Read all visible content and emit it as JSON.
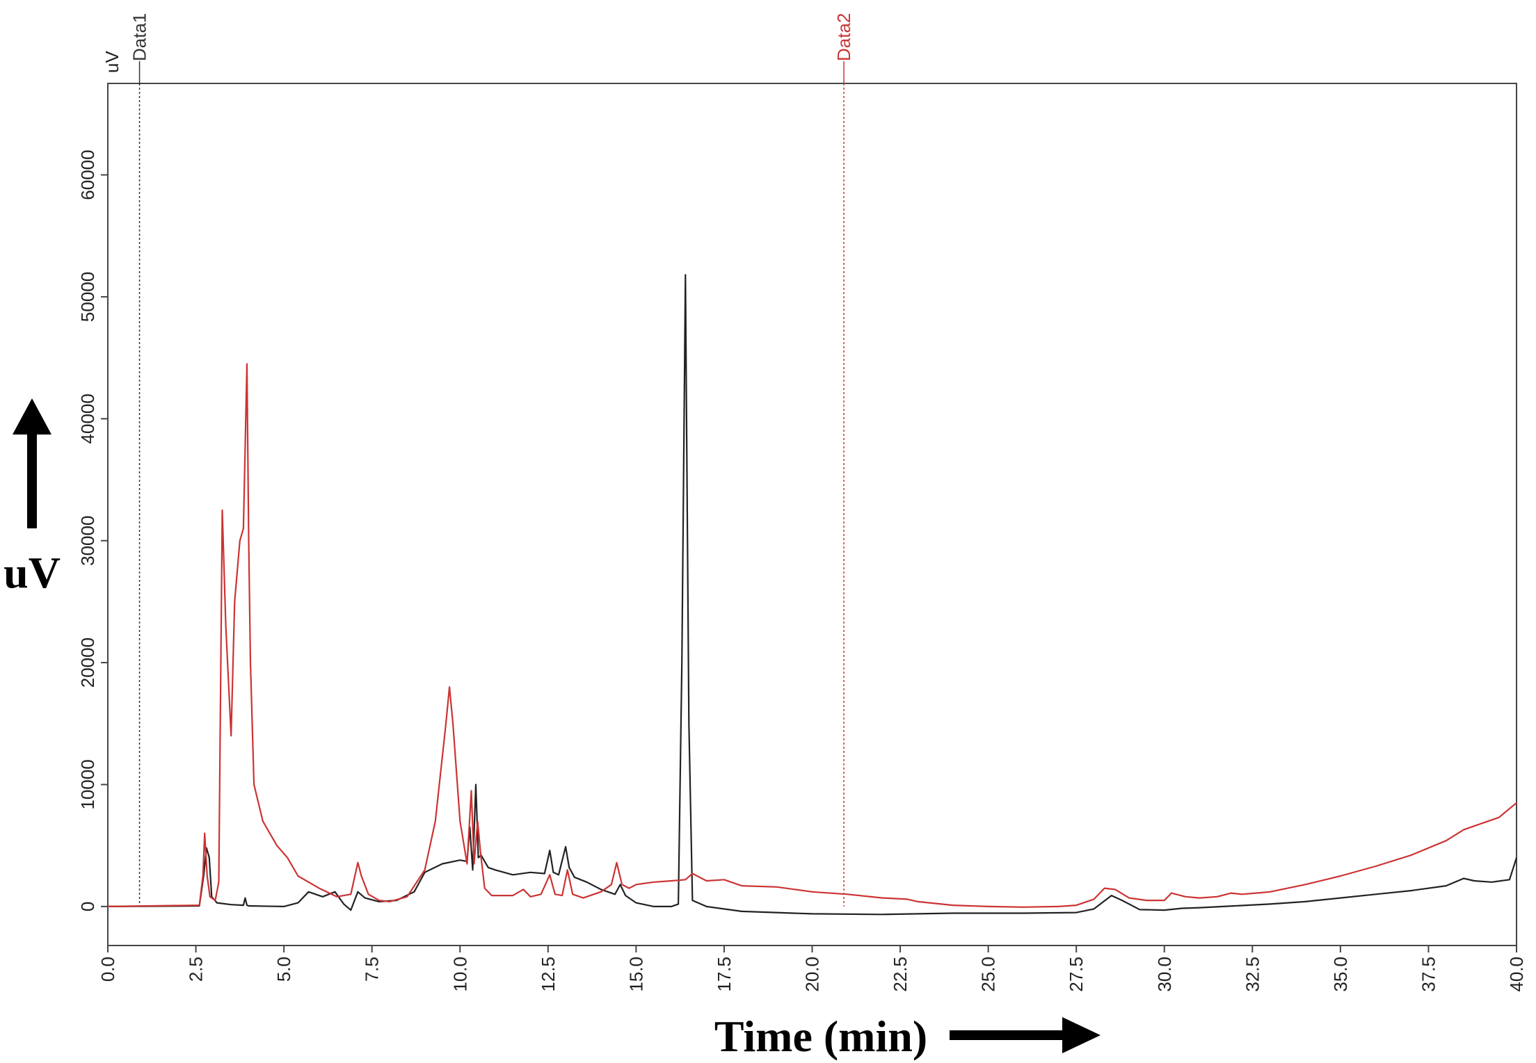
{
  "chart_data": {
    "type": "line",
    "xlabel": "Time (min)",
    "ylabel": "uV",
    "unit_top": "uV",
    "xlim": [
      0,
      40
    ],
    "ylim": [
      -3200,
      67500
    ],
    "x_ticks": [
      "0.0",
      "2.5",
      "5.0",
      "7.5",
      "10.0",
      "12.5",
      "15.0",
      "17.5",
      "20.0",
      "22.5",
      "25.0",
      "27.5",
      "30.0",
      "32.5",
      "35.0",
      "37.5",
      "40.0"
    ],
    "y_ticks": [
      "0",
      "10000",
      "20000",
      "30000",
      "40000",
      "50000",
      "60000"
    ],
    "markers": [
      {
        "label": "Data1",
        "x": 0.9,
        "color": "#333333"
      },
      {
        "label": "Data2",
        "x": 20.9,
        "color": "#cc3333"
      }
    ],
    "series": [
      {
        "color": "#222222",
        "x": [
          0,
          2.6,
          2.72,
          2.8,
          2.88,
          2.95,
          3.1,
          3.5,
          3.85,
          3.9,
          3.95,
          4.0,
          5.0,
          5.4,
          5.7,
          6.1,
          6.45,
          6.7,
          6.9,
          7.1,
          7.3,
          7.7,
          8.2,
          8.7,
          9.0,
          9.5,
          10.0,
          10.2,
          10.28,
          10.36,
          10.45,
          10.52,
          10.6,
          10.8,
          11.0,
          11.5,
          12.0,
          12.4,
          12.55,
          12.65,
          12.8,
          13.0,
          13.1,
          13.25,
          13.6,
          14.0,
          14.4,
          14.55,
          14.7,
          15.0,
          15.5,
          16.0,
          16.2,
          16.3,
          16.4,
          16.5,
          16.6,
          17.0,
          18.0,
          20.0,
          22.0,
          24.0,
          26.0,
          27.5,
          28.0,
          28.5,
          28.8,
          29.3,
          30.0,
          30.5,
          31.0,
          32.0,
          33.0,
          34.0,
          35.0,
          36.0,
          37.0,
          38.0,
          38.5,
          38.8,
          39.3,
          39.8,
          40.0
        ],
        "y": [
          0,
          50,
          2500,
          4800,
          4000,
          800,
          300,
          150,
          100,
          700,
          100,
          50,
          0,
          300,
          1200,
          800,
          1200,
          200,
          -300,
          1200,
          700,
          400,
          500,
          1200,
          2800,
          3500,
          3800,
          3700,
          6500,
          3000,
          10000,
          4000,
          4200,
          3200,
          3000,
          2600,
          2800,
          2700,
          4600,
          2800,
          2600,
          4900,
          3200,
          2400,
          2000,
          1400,
          1000,
          1800,
          900,
          300,
          0,
          0,
          200,
          20000,
          51800,
          15000,
          500,
          0,
          -400,
          -600,
          -650,
          -550,
          -550,
          -500,
          -200,
          900,
          500,
          -250,
          -300,
          -150,
          -100,
          50,
          200,
          400,
          700,
          1000,
          1300,
          1700,
          2300,
          2100,
          2000,
          2200,
          4000
        ]
      },
      {
        "color": "#cc3333",
        "x": [
          0,
          2.6,
          2.7,
          2.75,
          2.82,
          2.9,
          3.05,
          3.15,
          3.25,
          3.35,
          3.5,
          3.6,
          3.75,
          3.85,
          3.95,
          4.0,
          4.05,
          4.15,
          4.4,
          4.8,
          5.1,
          5.4,
          6.0,
          6.5,
          6.9,
          7.1,
          7.2,
          7.4,
          7.7,
          8.0,
          8.5,
          9.0,
          9.3,
          9.6,
          9.7,
          9.8,
          10.0,
          10.2,
          10.32,
          10.4,
          10.5,
          10.58,
          10.7,
          10.9,
          11.5,
          11.8,
          12.0,
          12.3,
          12.55,
          12.7,
          12.9,
          13.05,
          13.2,
          13.5,
          14.0,
          14.3,
          14.45,
          14.6,
          14.8,
          15.0,
          15.5,
          16.0,
          16.4,
          16.6,
          17.0,
          17.5,
          18.0,
          19.0,
          20.0,
          21.0,
          22.0,
          22.7,
          23.0,
          24.0,
          25.0,
          26.0,
          27.0,
          27.5,
          28.0,
          28.3,
          28.6,
          29.0,
          29.5,
          30.0,
          30.2,
          30.6,
          31.0,
          31.5,
          31.9,
          32.2,
          32.6,
          33.0,
          34.0,
          35.0,
          36.0,
          37.0,
          38.0,
          38.5,
          39.0,
          39.5,
          40.0
        ],
        "y": [
          0,
          100,
          2500,
          6000,
          2500,
          800,
          500,
          2000,
          32500,
          23000,
          14000,
          25000,
          30000,
          31000,
          44500,
          30000,
          20000,
          10000,
          7000,
          5000,
          4000,
          2500,
          1500,
          800,
          1000,
          3600,
          2500,
          1000,
          500,
          400,
          800,
          3000,
          7000,
          15000,
          18000,
          15000,
          7000,
          3500,
          9500,
          3500,
          7000,
          4500,
          1500,
          900,
          900,
          1400,
          800,
          1000,
          2600,
          1000,
          900,
          3000,
          1000,
          700,
          1200,
          1800,
          3600,
          1800,
          1500,
          1800,
          2000,
          2100,
          2200,
          2700,
          2100,
          2200,
          1700,
          1600,
          1200,
          1000,
          700,
          600,
          400,
          100,
          0,
          -50,
          0,
          100,
          600,
          1500,
          1400,
          700,
          500,
          500,
          1100,
          800,
          700,
          800,
          1100,
          1000,
          1100,
          1200,
          1800,
          2500,
          3300,
          4200,
          5400,
          6300,
          6800,
          7300,
          8500
        ]
      }
    ]
  }
}
